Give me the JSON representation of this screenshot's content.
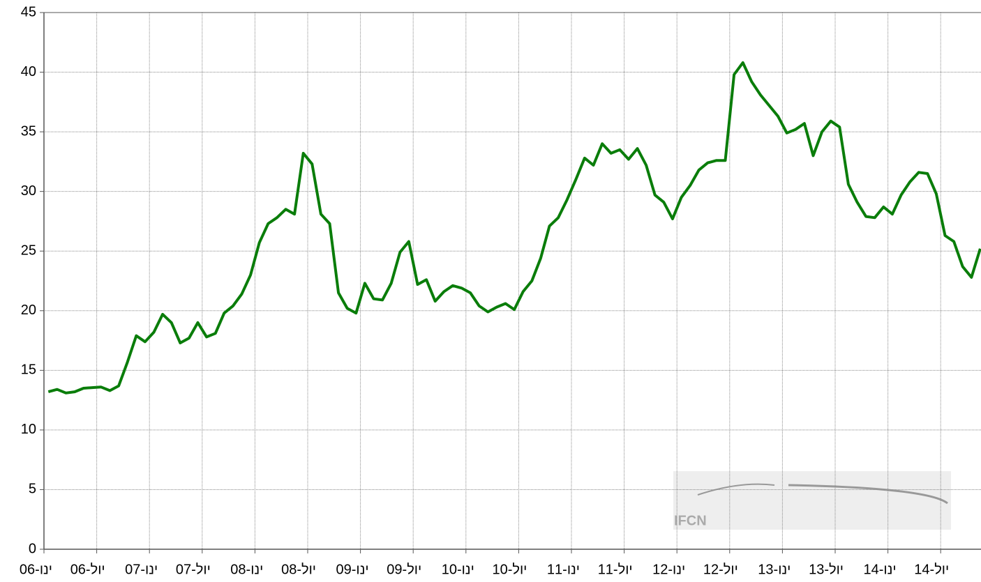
{
  "chart_data": {
    "type": "line",
    "categories": [
      "06-ינו",
      null,
      null,
      null,
      null,
      null,
      "06-יול",
      null,
      null,
      null,
      null,
      null,
      "07-ינו",
      null,
      null,
      null,
      null,
      null,
      "07-יול",
      null,
      null,
      null,
      null,
      null,
      "08-ינו",
      null,
      null,
      null,
      null,
      null,
      "08-יול",
      null,
      null,
      null,
      null,
      null,
      "09-ינו",
      null,
      null,
      null,
      null,
      null,
      "09-יול",
      null,
      null,
      null,
      null,
      null,
      "10-ינו",
      null,
      null,
      null,
      null,
      null,
      "10-יול",
      null,
      null,
      null,
      null,
      null,
      "11-ינו",
      null,
      null,
      null,
      null,
      null,
      "11-יול",
      null,
      null,
      null,
      null,
      null,
      "12-ינו",
      null,
      null,
      null,
      null,
      null,
      "12-יול",
      null,
      null,
      null,
      null,
      null,
      "13-ינו",
      null,
      null,
      null,
      null,
      null,
      "13-יול",
      null,
      null,
      null,
      null,
      null,
      "14-ינו",
      null,
      null,
      null,
      null,
      null,
      "14-יול",
      null,
      null,
      null,
      null
    ],
    "series": [
      {
        "color": "#0a7d0a",
        "values": [
          13.2,
          13.4,
          13.1,
          13.2,
          13.5,
          13.55,
          13.6,
          13.3,
          13.7,
          15.7,
          17.9,
          17.4,
          18.2,
          19.7,
          19.0,
          17.3,
          17.7,
          19.0,
          17.8,
          18.1,
          19.8,
          20.4,
          21.4,
          23.0,
          25.7,
          27.3,
          27.8,
          28.5,
          28.1,
          33.2,
          32.3,
          28.1,
          27.3,
          21.5,
          20.2,
          19.8,
          22.3,
          21.0,
          20.9,
          22.3,
          24.9,
          25.8,
          22.2,
          22.6,
          20.8,
          21.6,
          22.1,
          21.9,
          21.5,
          20.4,
          19.9,
          20.3,
          20.6,
          20.1,
          21.6,
          22.5,
          24.4,
          27.1,
          27.8,
          29.3,
          31.0,
          32.8,
          32.2,
          34.0,
          33.2,
          33.5,
          32.7,
          33.6,
          32.2,
          29.7,
          29.1,
          27.7,
          29.5,
          30.5,
          31.8,
          32.4,
          32.6,
          32.6,
          39.8,
          40.8,
          39.2,
          38.1,
          37.2,
          36.3,
          34.9,
          35.2,
          35.7,
          33.0,
          35.0,
          35.9,
          35.4,
          30.6,
          29.1,
          27.9,
          27.8,
          28.7,
          28.1,
          29.7,
          30.8,
          31.6,
          31.5,
          29.8,
          26.3,
          25.8,
          23.7,
          22.8,
          25.2
        ]
      }
    ],
    "ylim": [
      0,
      45
    ],
    "yticks": [
      0,
      5,
      10,
      15,
      20,
      25,
      30,
      35,
      40,
      45
    ],
    "grid": true,
    "watermark": "IFCN"
  }
}
